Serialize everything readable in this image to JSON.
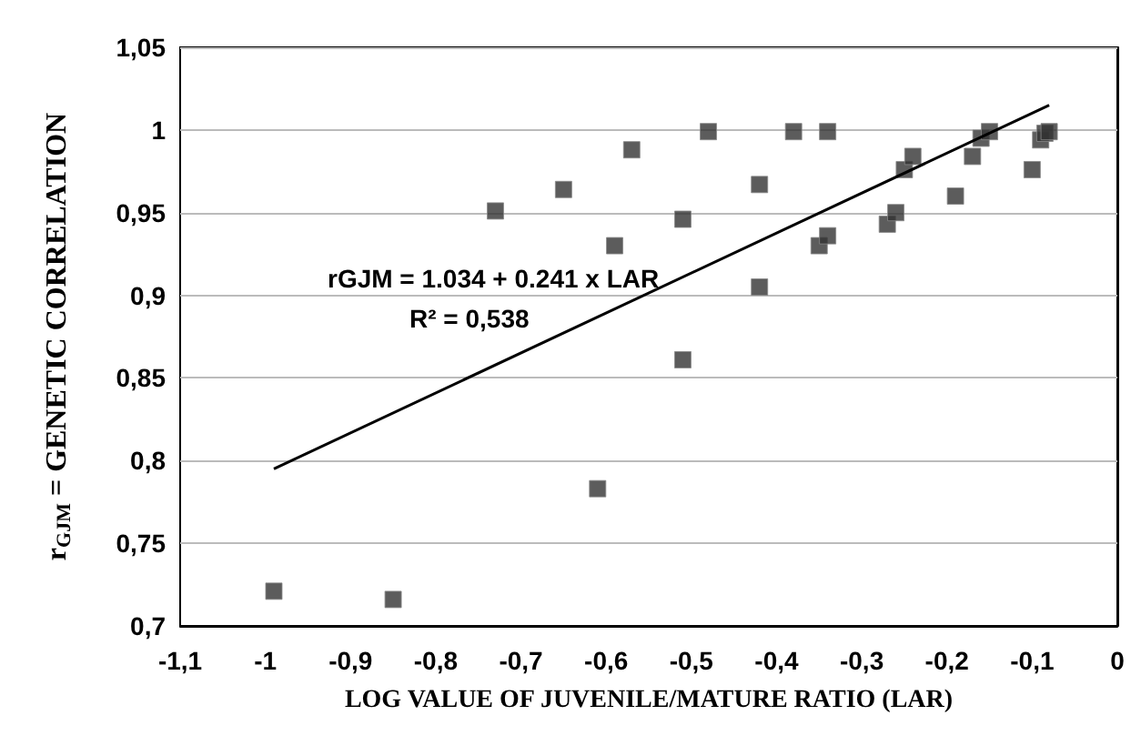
{
  "chart_data": {
    "type": "scatter",
    "xlabel": "LOG VALUE OF JUVENILE/MATURE RATIO (LAR)",
    "ylabel": "r$_{GJM}$ = GENETIC CORRELATION",
    "annotations": [
      "rGJM = 1.034 + 0.241 x LAR",
      "R² = 0,538"
    ],
    "series": [
      {
        "color": "#333333",
        "marker": "square",
        "x": [
          -0.99,
          -0.85,
          -0.73,
          -0.65,
          -0.59,
          -0.57,
          -0.61,
          -0.51,
          -0.51,
          -0.48,
          -0.42,
          -0.42,
          -0.38,
          -0.34,
          -0.35,
          -0.34,
          -0.27,
          -0.26,
          -0.25,
          -0.24,
          -0.19,
          -0.17,
          -0.16,
          -0.15,
          -0.1,
          -0.09,
          -0.085,
          -0.08
        ],
        "values": [
          0.721,
          0.716,
          0.951,
          0.964,
          0.93,
          0.988,
          0.783,
          0.946,
          0.861,
          0.999,
          0.967,
          0.905,
          0.999,
          0.999,
          0.93,
          0.936,
          0.943,
          0.95,
          0.976,
          0.984,
          0.96,
          0.984,
          0.995,
          0.999,
          0.976,
          0.994,
          0.998,
          0.999
        ]
      },
      {
        "type": "line",
        "color": "#000000",
        "marker": "none",
        "x": [
          -0.99,
          -0.08
        ],
        "values": [
          0.795,
          1.015
        ]
      }
    ],
    "xlim": [
      -1.1,
      0
    ],
    "xticks": [
      {
        "value": -1.1,
        "label": "-1,1"
      },
      -1,
      {
        "value": -0.9,
        "label": "-0,9"
      },
      {
        "value": -0.8,
        "label": "-0,8"
      },
      {
        "value": -0.7,
        "label": "-0,7"
      },
      {
        "value": -0.6,
        "label": "-0,6"
      },
      {
        "value": -0.5,
        "label": "-0,5"
      },
      {
        "value": -0.4,
        "label": "-0,4"
      },
      {
        "value": -0.3,
        "label": "-0,3"
      },
      {
        "value": -0.2,
        "label": "-0,2"
      },
      {
        "value": -0.1,
        "label": "-0,1"
      },
      0
    ],
    "ylim": [
      0.7,
      1.05
    ],
    "yticks": [
      {
        "value": 0.7,
        "label": "0,7"
      },
      {
        "value": 0.75,
        "label": "0,75"
      },
      {
        "value": 0.8,
        "label": "0,8"
      },
      {
        "value": 0.85,
        "label": "0,85"
      },
      {
        "value": 0.9,
        "label": "0,9"
      },
      {
        "value": 0.95,
        "label": "0,95"
      },
      1,
      {
        "value": 1.05,
        "label": "1,05"
      }
    ],
    "grid": "y"
  }
}
